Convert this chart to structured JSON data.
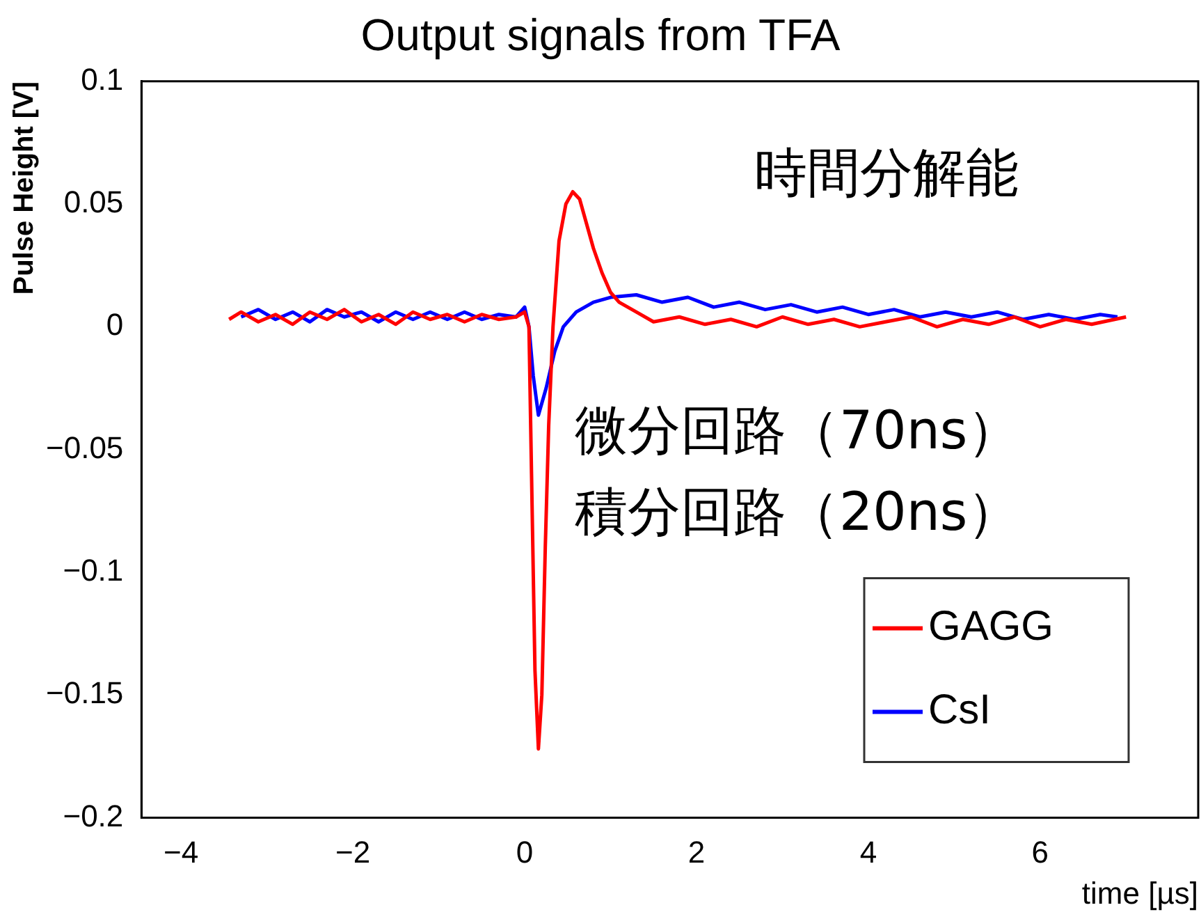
{
  "chart_data": {
    "type": "line",
    "title": "Output signals from TFA",
    "xlabel": "time [µs]",
    "ylabel": "Pulse Height [V]",
    "annotations": [
      "時間分解能",
      "微分回路（70ns）",
      "積分回路（20ns）"
    ],
    "xlim": [
      -4.46,
      7.84
    ],
    "xticks": [
      {
        "value": -4,
        "label": "−4"
      },
      {
        "value": -2,
        "label": "−2"
      },
      0,
      2,
      4,
      6
    ],
    "ylim": [
      -0.2,
      0.1
    ],
    "yticks": [
      {
        "value": -0.2,
        "label": "−0.2"
      },
      {
        "value": -0.15,
        "label": "−0.15"
      },
      {
        "value": -0.1,
        "label": "−0.1"
      },
      {
        "value": -0.05,
        "label": "−0.05"
      },
      0,
      0.05,
      0.1
    ],
    "grid": false,
    "legend": "bottom right",
    "marker": "none",
    "line_style": "solid",
    "series": [
      {
        "name": "GAGG",
        "color": "#ff0000",
        "x": [
          -3.44,
          -3.3,
          -3.1,
          -2.9,
          -2.7,
          -2.5,
          -2.3,
          -2.1,
          -1.9,
          -1.7,
          -1.5,
          -1.3,
          -1.1,
          -0.9,
          -0.7,
          -0.5,
          -0.3,
          -0.1,
          0.0,
          0.05,
          0.08,
          0.12,
          0.16,
          0.2,
          0.24,
          0.28,
          0.33,
          0.4,
          0.48,
          0.56,
          0.64,
          0.72,
          0.8,
          0.9,
          1.0,
          1.1,
          1.3,
          1.5,
          1.8,
          2.1,
          2.4,
          2.7,
          3.0,
          3.3,
          3.6,
          3.9,
          4.2,
          4.5,
          4.8,
          5.1,
          5.4,
          5.7,
          6.0,
          6.3,
          6.6,
          7.0
        ],
        "values": [
          0.003,
          0.006,
          0.002,
          0.005,
          0.001,
          0.006,
          0.003,
          0.007,
          0.002,
          0.005,
          0.001,
          0.006,
          0.003,
          0.005,
          0.002,
          0.005,
          0.003,
          0.004,
          0.006,
          0.0,
          -0.06,
          -0.14,
          -0.172,
          -0.15,
          -0.09,
          -0.04,
          0.0,
          0.035,
          0.05,
          0.055,
          0.052,
          0.042,
          0.032,
          0.022,
          0.014,
          0.01,
          0.006,
          0.002,
          0.004,
          0.001,
          0.003,
          0.0,
          0.004,
          0.001,
          0.003,
          0.0,
          0.002,
          0.004,
          0.0,
          0.003,
          0.001,
          0.004,
          0.0,
          0.003,
          0.001,
          0.004
        ]
      },
      {
        "name": "CsI",
        "color": "#0000ff",
        "x": [
          -3.3,
          -3.1,
          -2.9,
          -2.7,
          -2.5,
          -2.3,
          -2.1,
          -1.9,
          -1.7,
          -1.5,
          -1.3,
          -1.1,
          -0.9,
          -0.7,
          -0.5,
          -0.3,
          -0.1,
          0.0,
          0.05,
          0.1,
          0.16,
          0.25,
          0.35,
          0.45,
          0.6,
          0.8,
          1.0,
          1.3,
          1.6,
          1.9,
          2.2,
          2.5,
          2.8,
          3.1,
          3.4,
          3.7,
          4.0,
          4.3,
          4.6,
          4.9,
          5.2,
          5.5,
          5.8,
          6.1,
          6.4,
          6.7,
          6.9
        ],
        "values": [
          0.004,
          0.007,
          0.003,
          0.006,
          0.002,
          0.007,
          0.004,
          0.006,
          0.002,
          0.006,
          0.003,
          0.006,
          0.003,
          0.006,
          0.003,
          0.005,
          0.004,
          0.008,
          0.0,
          -0.02,
          -0.036,
          -0.025,
          -0.01,
          0.0,
          0.006,
          0.01,
          0.012,
          0.013,
          0.01,
          0.012,
          0.008,
          0.01,
          0.007,
          0.009,
          0.006,
          0.008,
          0.005,
          0.007,
          0.004,
          0.006,
          0.004,
          0.006,
          0.003,
          0.005,
          0.003,
          0.005,
          0.004
        ]
      }
    ]
  }
}
